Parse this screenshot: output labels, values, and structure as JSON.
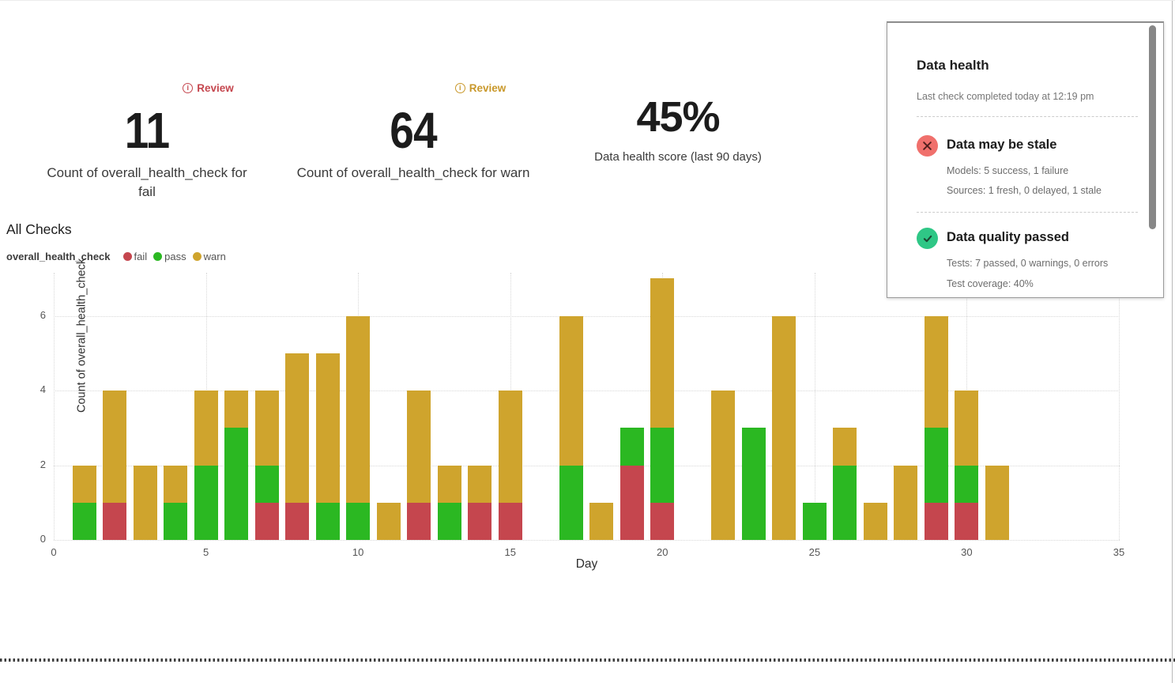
{
  "metrics": [
    {
      "badge": "Review",
      "badge_color": "#c5464e",
      "value": "11",
      "label": "Count of overall_health_check for fail"
    },
    {
      "badge": "Review",
      "badge_color": "#c9982a",
      "value": "64",
      "label": "Count of overall_health_check for warn"
    },
    {
      "value": "45%",
      "label": "Data health score (last 90 days)"
    }
  ],
  "chart_section": {
    "title": "All Checks",
    "legend_series_name": "overall_health_check"
  },
  "chart_data": {
    "type": "bar",
    "stacked": true,
    "title": "All Checks",
    "xlabel": "Day",
    "ylabel": "Count of overall_health_check",
    "xlim": [
      0,
      35
    ],
    "ylim": [
      0,
      7
    ],
    "x_ticks": [
      0,
      5,
      10,
      15,
      20,
      25,
      30,
      35
    ],
    "y_ticks": [
      0,
      2,
      4,
      6
    ],
    "grid": true,
    "legend_position": "top-left",
    "x": [
      1,
      2,
      3,
      4,
      5,
      6,
      7,
      8,
      9,
      10,
      11,
      12,
      13,
      14,
      15,
      16,
      17,
      18,
      19,
      20,
      21,
      22,
      23,
      24,
      25,
      26,
      27,
      28,
      29,
      30,
      31
    ],
    "series": [
      {
        "name": "fail",
        "color": "#c5464e",
        "values": [
          0,
          1,
          0,
          0,
          0,
          0,
          1,
          1,
          0,
          0,
          0,
          1,
          0,
          1,
          1,
          0,
          0,
          0,
          2,
          1,
          0,
          0,
          0,
          0,
          0,
          0,
          0,
          0,
          1,
          1,
          0
        ]
      },
      {
        "name": "pass",
        "color": "#2bb822",
        "values": [
          1,
          0,
          0,
          1,
          2,
          3,
          1,
          0,
          1,
          1,
          0,
          0,
          1,
          0,
          0,
          0,
          2,
          0,
          1,
          2,
          0,
          0,
          3,
          0,
          1,
          2,
          0,
          0,
          2,
          1,
          0
        ]
      },
      {
        "name": "warn",
        "color": "#cfa42d",
        "values": [
          1,
          3,
          2,
          1,
          2,
          1,
          2,
          4,
          4,
          5,
          1,
          3,
          1,
          1,
          3,
          0,
          4,
          1,
          0,
          4,
          0,
          4,
          0,
          6,
          0,
          1,
          1,
          2,
          3,
          2,
          2
        ]
      }
    ]
  },
  "health_panel": {
    "title": "Data health",
    "subtitle": "Last check completed today at 12:19 pm",
    "sections": [
      {
        "status": "error",
        "icon": "x-circle-icon",
        "icon_bg": "#f0706c",
        "icon_stroke": "#52201e",
        "title": "Data may be stale",
        "lines": [
          "Models: 5 success, 1 failure",
          "Sources: 1 fresh, 0 delayed, 1 stale"
        ]
      },
      {
        "status": "ok",
        "icon": "check-circle-icon",
        "icon_bg": "#2fc786",
        "icon_stroke": "#1c4733",
        "title": "Data quality passed",
        "lines": [
          "Tests: 7 passed, 0 warnings, 0 errors",
          "Test coverage: 40%"
        ]
      }
    ]
  }
}
